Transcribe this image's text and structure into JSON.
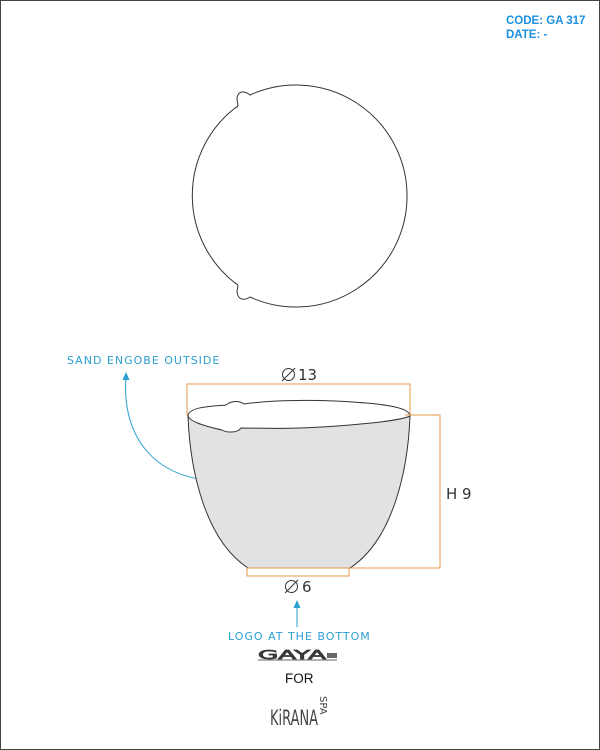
{
  "header": {
    "code": "CODE: GA 317",
    "date": "DATE: -"
  },
  "annotations": {
    "outside_finish": "SAND ENGOBE OUTSIDE",
    "bottom_note": "LOGO AT THE BOTTOM",
    "for_label": "FOR"
  },
  "dimensions": {
    "top_diameter": "13",
    "height": "H 9",
    "base_diameter": "6"
  },
  "logos": {
    "maker": "GAYA",
    "client": "KiRANA",
    "client_suffix": "SPA"
  },
  "colors": {
    "dimension_lines": "#e59a4a",
    "annotation_text": "#2a9fd0",
    "body_fill": "#e2e2e2",
    "header_text": "#1b8fe0"
  }
}
